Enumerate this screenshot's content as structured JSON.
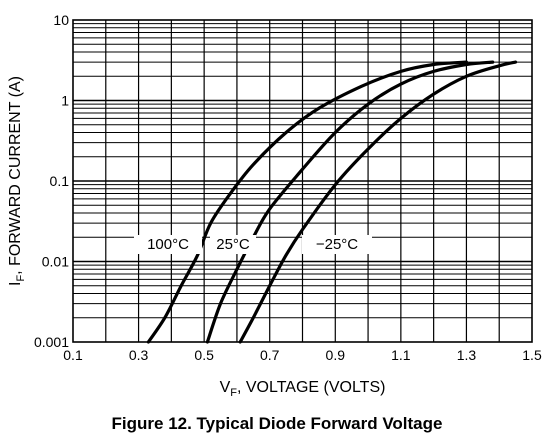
{
  "chart_data": {
    "type": "line",
    "title": "",
    "xlabel_prefix": "V",
    "xlabel_sub": "F",
    "xlabel_suffix": ", VOLTAGE (VOLTS)",
    "ylabel_prefix": "I",
    "ylabel_sub": "F",
    "ylabel_suffix": ", FORWARD CURRENT (A)",
    "xlim": [
      0.1,
      1.5
    ],
    "ylim": [
      0.001,
      10
    ],
    "yscale": "log",
    "x_ticks": [
      0.1,
      0.3,
      0.5,
      0.7,
      0.9,
      1.1,
      1.3,
      1.5
    ],
    "x_tick_labels": [
      "0.1",
      "0.3",
      "0.5",
      "0.7",
      "0.9",
      "1.1",
      "1.3",
      "1.5"
    ],
    "y_ticks": [
      0.001,
      0.01,
      0.1,
      1,
      10
    ],
    "y_tick_labels": [
      "0.001",
      "0.01",
      "0.1",
      "1",
      "10"
    ],
    "grid": true,
    "series": [
      {
        "name": "100°C",
        "points": [
          [
            0.33,
            0.001
          ],
          [
            0.38,
            0.002
          ],
          [
            0.43,
            0.005
          ],
          [
            0.48,
            0.012
          ],
          [
            0.52,
            0.03
          ],
          [
            0.58,
            0.07
          ],
          [
            0.65,
            0.16
          ],
          [
            0.75,
            0.4
          ],
          [
            0.85,
            0.8
          ],
          [
            0.98,
            1.5
          ],
          [
            1.1,
            2.3
          ],
          [
            1.2,
            2.8
          ],
          [
            1.3,
            3.0
          ]
        ]
      },
      {
        "name": "25°C",
        "points": [
          [
            0.51,
            0.001
          ],
          [
            0.55,
            0.003
          ],
          [
            0.6,
            0.008
          ],
          [
            0.65,
            0.02
          ],
          [
            0.7,
            0.045
          ],
          [
            0.8,
            0.14
          ],
          [
            0.9,
            0.4
          ],
          [
            1.0,
            0.9
          ],
          [
            1.1,
            1.6
          ],
          [
            1.2,
            2.3
          ],
          [
            1.3,
            2.8
          ],
          [
            1.38,
            3.0
          ]
        ]
      },
      {
        "name": "−25°C",
        "points": [
          [
            0.61,
            0.001
          ],
          [
            0.65,
            0.002
          ],
          [
            0.7,
            0.005
          ],
          [
            0.75,
            0.012
          ],
          [
            0.8,
            0.025
          ],
          [
            0.9,
            0.09
          ],
          [
            1.0,
            0.25
          ],
          [
            1.1,
            0.6
          ],
          [
            1.2,
            1.2
          ],
          [
            1.3,
            2.0
          ],
          [
            1.4,
            2.7
          ],
          [
            1.45,
            3.0
          ]
        ]
      }
    ]
  },
  "caption": "Figure 12. Typical Diode Forward Voltage"
}
